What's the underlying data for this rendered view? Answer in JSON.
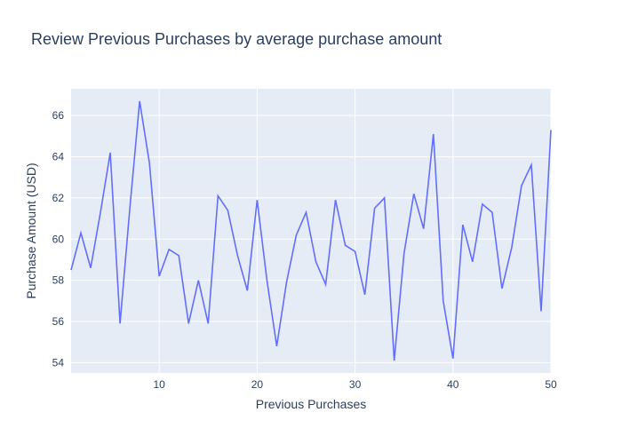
{
  "chart_data": {
    "type": "line",
    "title": "Review Previous Purchases by average purchase amount",
    "xlabel": "Previous Purchases",
    "ylabel": "Purchase Amount (USD)",
    "xlim": [
      1,
      50
    ],
    "ylim": [
      53.5,
      67.3
    ],
    "x_ticks": [
      10,
      20,
      30,
      40,
      50
    ],
    "y_ticks": [
      54,
      56,
      58,
      60,
      62,
      64,
      66
    ],
    "grid": true,
    "colors": {
      "line": "#636efa",
      "plot_bg": "#e5ecf6",
      "grid": "#ffffff",
      "text": "#2a3f5f"
    },
    "series": [
      {
        "x": [
          1,
          2,
          3,
          4,
          5,
          6,
          7,
          8,
          9,
          10,
          11,
          12,
          13,
          14,
          15,
          16,
          17,
          18,
          19,
          20,
          21,
          22,
          23,
          24,
          25,
          26,
          27,
          28,
          29,
          30,
          31,
          32,
          33,
          34,
          35,
          36,
          37,
          38,
          39,
          40,
          41,
          42,
          43,
          44,
          45,
          46,
          47,
          48,
          49,
          50
        ],
        "values": [
          58.5,
          60.3,
          58.6,
          61.3,
          64.2,
          55.9,
          61.5,
          66.7,
          63.7,
          58.2,
          59.5,
          59.2,
          55.9,
          58.0,
          55.9,
          62.1,
          61.4,
          59.2,
          57.5,
          61.9,
          58.0,
          54.8,
          57.9,
          60.2,
          61.3,
          58.9,
          57.8,
          61.9,
          59.7,
          59.4,
          57.3,
          61.5,
          62.0,
          54.1,
          59.3,
          62.2,
          60.5,
          65.1,
          57.0,
          54.2,
          60.7,
          58.9,
          61.7,
          61.3,
          57.6,
          59.6,
          62.6,
          63.6,
          56.5,
          65.3
        ]
      }
    ]
  }
}
